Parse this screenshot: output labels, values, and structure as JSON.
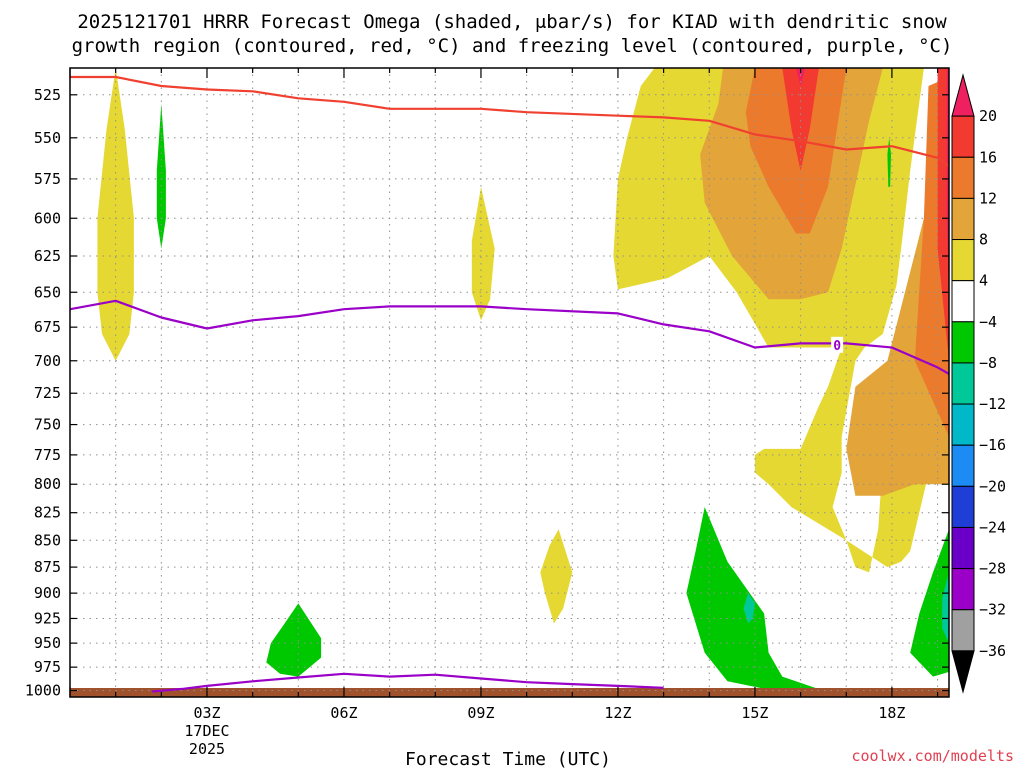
{
  "title": {
    "line1": "2025121701 HRRR Forecast Omega (shaded, μbar/s) for KIAD with dendritic snow",
    "line2": "growth region (contoured, red, °C) and freezing level (contoured, purple, °C)"
  },
  "credit": "coolwx.com/modelts",
  "colors": {
    "background": "#ffffff",
    "ground": "#a0522d",
    "dgz_line": "#f04030",
    "freezing_line": "#9a00c8",
    "grid": "#909090"
  },
  "chart_data": {
    "type": "heatmap",
    "xlabel": "Forecast Time (UTC)",
    "ylabel": "",
    "x_units": "hours after 2025-12-17 00Z",
    "xlim": [
      0.0,
      19.25
    ],
    "ylim_hPa": [
      1007,
      510
    ],
    "grid": true,
    "x_ticks": [
      {
        "value": 3,
        "label": "03Z",
        "sub1": "17DEC",
        "sub2": "2025"
      },
      {
        "value": 6,
        "label": "06Z"
      },
      {
        "value": 9,
        "label": "09Z"
      },
      {
        "value": 12,
        "label": "12Z"
      },
      {
        "value": 15,
        "label": "15Z"
      },
      {
        "value": 18,
        "label": "18Z"
      }
    ],
    "y_ticks": [
      525,
      550,
      575,
      600,
      625,
      650,
      675,
      700,
      725,
      750,
      775,
      800,
      825,
      850,
      875,
      900,
      925,
      950,
      975,
      1000
    ],
    "colorbar": {
      "labels": [
        "20",
        "16",
        "12",
        "8",
        "4",
        "−4",
        "−8",
        "−12",
        "−16",
        "−20",
        "−24",
        "−28",
        "−32",
        "−36"
      ],
      "colors": [
        "#ee2060",
        "#f23a30",
        "#ec7a2c",
        "#e3a43a",
        "#e6d832",
        "#ffffff",
        "#00c800",
        "#00c898",
        "#00b8c8",
        "#1c8cf4",
        "#1e3ed6",
        "#6a00c8",
        "#9a00c8",
        "#a0a0a0",
        "#000000"
      ]
    },
    "fills": [
      {
        "name": "yellow",
        "color": "#e6d832",
        "regions": [
          [
            [
              1.0,
              510
            ],
            [
              1.2,
              545
            ],
            [
              1.4,
              600
            ],
            [
              1.4,
              650
            ],
            [
              1.3,
              680
            ],
            [
              1.0,
              700
            ],
            [
              0.7,
              680
            ],
            [
              0.6,
              650
            ],
            [
              0.6,
              600
            ],
            [
              0.8,
              545
            ]
          ],
          [
            [
              9.0,
              580
            ],
            [
              9.3,
              620
            ],
            [
              9.2,
              655
            ],
            [
              9.0,
              670
            ],
            [
              8.8,
              650
            ],
            [
              8.8,
              615
            ]
          ],
          [
            [
              10.7,
              840
            ],
            [
              11.0,
              880
            ],
            [
              10.8,
              915
            ],
            [
              10.6,
              930
            ],
            [
              10.4,
              900
            ],
            [
              10.3,
              880
            ],
            [
              10.5,
              855
            ]
          ],
          [
            [
              12.8,
              510
            ],
            [
              18.7,
              510
            ],
            [
              18.4,
              570
            ],
            [
              18.2,
              620
            ],
            [
              18.1,
              645
            ],
            [
              17.8,
              680
            ],
            [
              17.4,
              690
            ],
            [
              17.2,
              700
            ],
            [
              16.9,
              760
            ],
            [
              16.9,
              790
            ],
            [
              16.7,
              820
            ],
            [
              17.0,
              850
            ],
            [
              17.2,
              875
            ],
            [
              17.5,
              880
            ],
            [
              17.7,
              840
            ],
            [
              17.8,
              780
            ],
            [
              18.0,
              760
            ],
            [
              18.3,
              690
            ],
            [
              18.7,
              620
            ],
            [
              19.25,
              590
            ],
            [
              19.25,
              720
            ],
            [
              18.4,
              860
            ],
            [
              18.2,
              870
            ],
            [
              17.9,
              875
            ],
            [
              17.0,
              850
            ],
            [
              16.4,
              835
            ],
            [
              15.8,
              820
            ],
            [
              15.3,
              800
            ],
            [
              15.0,
              790
            ],
            [
              15.0,
              775
            ],
            [
              15.2,
              770
            ],
            [
              16.0,
              770
            ],
            [
              16.4,
              735
            ],
            [
              16.6,
              720
            ],
            [
              16.9,
              690
            ],
            [
              16.2,
              690
            ],
            [
              15.3,
              690
            ],
            [
              14.6,
              650
            ],
            [
              14.0,
              625
            ],
            [
              13.1,
              640
            ],
            [
              12.0,
              648
            ],
            [
              11.9,
              625
            ],
            [
              12.0,
              575
            ],
            [
              12.2,
              550
            ],
            [
              12.5,
              520
            ]
          ]
        ]
      },
      {
        "name": "light-orange",
        "color": "#e3a43a",
        "regions": [
          [
            [
              14.3,
              510
            ],
            [
              17.8,
              510
            ],
            [
              17.5,
              540
            ],
            [
              16.9,
              620
            ],
            [
              16.6,
              650
            ],
            [
              16.0,
              655
            ],
            [
              15.3,
              655
            ],
            [
              14.5,
              625
            ],
            [
              13.9,
              590
            ],
            [
              13.8,
              560
            ],
            [
              14.2,
              530
            ]
          ],
          [
            [
              17.2,
              810
            ],
            [
              17.0,
              770
            ],
            [
              17.2,
              720
            ],
            [
              17.9,
              700
            ],
            [
              18.7,
              600
            ],
            [
              19.25,
              580
            ],
            [
              19.25,
              800
            ],
            [
              18.5,
              800
            ],
            [
              17.8,
              810
            ]
          ]
        ]
      },
      {
        "name": "orange",
        "color": "#ec7a2c",
        "regions": [
          [
            [
              15.0,
              510
            ],
            [
              17.0,
              510
            ],
            [
              16.6,
              580
            ],
            [
              16.2,
              610
            ],
            [
              15.9,
              610
            ],
            [
              15.3,
              580
            ],
            [
              14.9,
              555
            ],
            [
              14.8,
              535
            ]
          ],
          [
            [
              18.8,
              520
            ],
            [
              19.25,
              515
            ],
            [
              19.25,
              760
            ],
            [
              18.5,
              700
            ],
            [
              18.7,
              600
            ]
          ]
        ]
      },
      {
        "name": "red",
        "color": "#f23a30",
        "regions": [
          [
            [
              15.6,
              510
            ],
            [
              16.4,
              510
            ],
            [
              16.2,
              545
            ],
            [
              16.0,
              570
            ],
            [
              15.8,
              545
            ]
          ],
          [
            [
              19.0,
              510
            ],
            [
              19.25,
              510
            ],
            [
              19.25,
              700
            ],
            [
              19.0,
              620
            ]
          ]
        ]
      },
      {
        "name": "pink",
        "color": "#ee2060",
        "regions": [
          [
            [
              15.9,
              510
            ],
            [
              16.1,
              510
            ],
            [
              16.0,
              520
            ]
          ],
          [
            [
              19.2,
              510
            ],
            [
              19.25,
              510
            ],
            [
              19.25,
              650
            ],
            [
              19.2,
              600
            ]
          ]
        ]
      },
      {
        "name": "green",
        "color": "#00c800",
        "regions": [
          [
            [
              2.0,
              530
            ],
            [
              2.1,
              570
            ],
            [
              2.1,
              600
            ],
            [
              2.0,
              620
            ],
            [
              1.9,
              600
            ],
            [
              1.9,
              570
            ]
          ],
          [
            [
              5.0,
              910
            ],
            [
              5.5,
              945
            ],
            [
              5.5,
              965
            ],
            [
              5.0,
              985
            ],
            [
              4.6,
              982
            ],
            [
              4.3,
              970
            ],
            [
              4.4,
              950
            ],
            [
              4.7,
              930
            ]
          ],
          [
            [
              13.9,
              820
            ],
            [
              14.4,
              870
            ],
            [
              15.2,
              920
            ],
            [
              15.3,
              960
            ],
            [
              15.6,
              985
            ],
            [
              16.5,
              1000
            ],
            [
              15.4,
              1000
            ],
            [
              14.4,
              990
            ],
            [
              13.9,
              960
            ],
            [
              13.5,
              900
            ],
            [
              13.7,
              860
            ]
          ],
          [
            [
              17.94,
              550
            ],
            [
              17.98,
              560
            ],
            [
              17.96,
              580
            ],
            [
              17.92,
              580
            ],
            [
              17.9,
              560
            ]
          ],
          [
            [
              19.25,
              840
            ],
            [
              19.25,
              980
            ],
            [
              18.9,
              985
            ],
            [
              18.4,
              960
            ],
            [
              18.6,
              920
            ],
            [
              18.9,
              880
            ]
          ]
        ]
      },
      {
        "name": "teal",
        "color": "#00c898",
        "regions": [
          [
            [
              14.85,
              900
            ],
            [
              15.0,
              910
            ],
            [
              14.95,
              925
            ],
            [
              14.85,
              930
            ],
            [
              14.75,
              915
            ]
          ],
          [
            [
              19.25,
              880
            ],
            [
              19.25,
              950
            ],
            [
              19.1,
              935
            ],
            [
              19.1,
              905
            ]
          ]
        ]
      }
    ],
    "series": [
      {
        "name": "",
        "color": "#f04030",
        "points": [
          [
            0,
            515
          ],
          [
            1.0,
            515
          ],
          [
            2.0,
            520
          ],
          [
            3.0,
            522
          ],
          [
            4.0,
            523
          ],
          [
            5.0,
            527
          ],
          [
            6.0,
            529
          ],
          [
            7.0,
            533
          ],
          [
            9.0,
            533
          ],
          [
            10.0,
            535
          ],
          [
            12.0,
            537
          ],
          [
            13.0,
            538
          ],
          [
            14.0,
            540
          ],
          [
            15.0,
            548
          ],
          [
            16.0,
            552
          ],
          [
            17.0,
            557
          ],
          [
            18.0,
            555
          ],
          [
            19.0,
            562
          ],
          [
            19.25,
            567
          ]
        ]
      },
      {
        "name": "",
        "color": "#9a00c8",
        "points": [
          [
            0,
            662
          ],
          [
            1.0,
            656
          ],
          [
            2.0,
            668
          ],
          [
            3.0,
            676
          ],
          [
            4.0,
            670
          ],
          [
            5.0,
            667
          ],
          [
            6.0,
            662
          ],
          [
            7.0,
            660
          ],
          [
            9.0,
            660
          ],
          [
            10.0,
            662
          ],
          [
            12.0,
            665
          ],
          [
            13.0,
            673
          ],
          [
            14.0,
            678
          ],
          [
            15.0,
            690
          ],
          [
            16.0,
            687
          ],
          [
            17.0,
            687
          ],
          [
            18.0,
            690
          ],
          [
            19.0,
            705
          ],
          [
            19.25,
            710
          ]
        ]
      },
      {
        "name": "",
        "color": "#9a00c8",
        "points": [
          [
            1.8,
            1001
          ],
          [
            2.5,
            998
          ],
          [
            3.0,
            995
          ],
          [
            4.0,
            990
          ],
          [
            5.0,
            986
          ],
          [
            6.0,
            982
          ],
          [
            7.0,
            985
          ],
          [
            8.0,
            983
          ],
          [
            9.0,
            987
          ],
          [
            10.0,
            991
          ],
          [
            11.0,
            993
          ],
          [
            12.0,
            995
          ],
          [
            13.0,
            997
          ]
        ]
      }
    ],
    "contour_label": {
      "text": "0",
      "x": 16.8,
      "y": 688
    }
  }
}
